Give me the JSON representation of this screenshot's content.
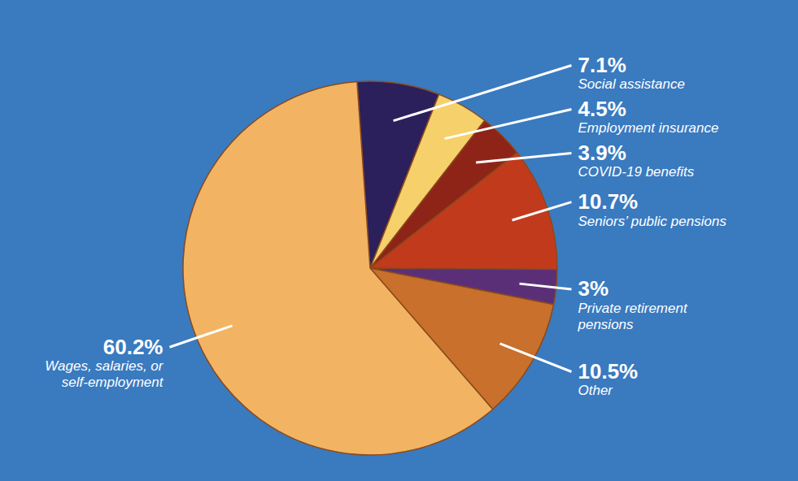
{
  "chart_data": {
    "type": "pie",
    "categories": [
      "Social assistance",
      "Employment insurance",
      "COVID-19 benefits",
      "Seniors’ public pensions",
      "Private retirement pensions",
      "Other",
      "Wages, salaries, or self-employment"
    ],
    "values": [
      7.1,
      4.5,
      3.9,
      10.7,
      3,
      10.5,
      60.2
    ],
    "value_labels": [
      "7.1%",
      "4.5%",
      "3.9%",
      "10.7%",
      "3%",
      "10.5%",
      "60.2%"
    ],
    "colors": [
      "#2b1f5c",
      "#f6d06a",
      "#8e2418",
      "#c23a1c",
      "#5b2f78",
      "#c8702c",
      "#f2b462"
    ],
    "data_labels": true
  }
}
